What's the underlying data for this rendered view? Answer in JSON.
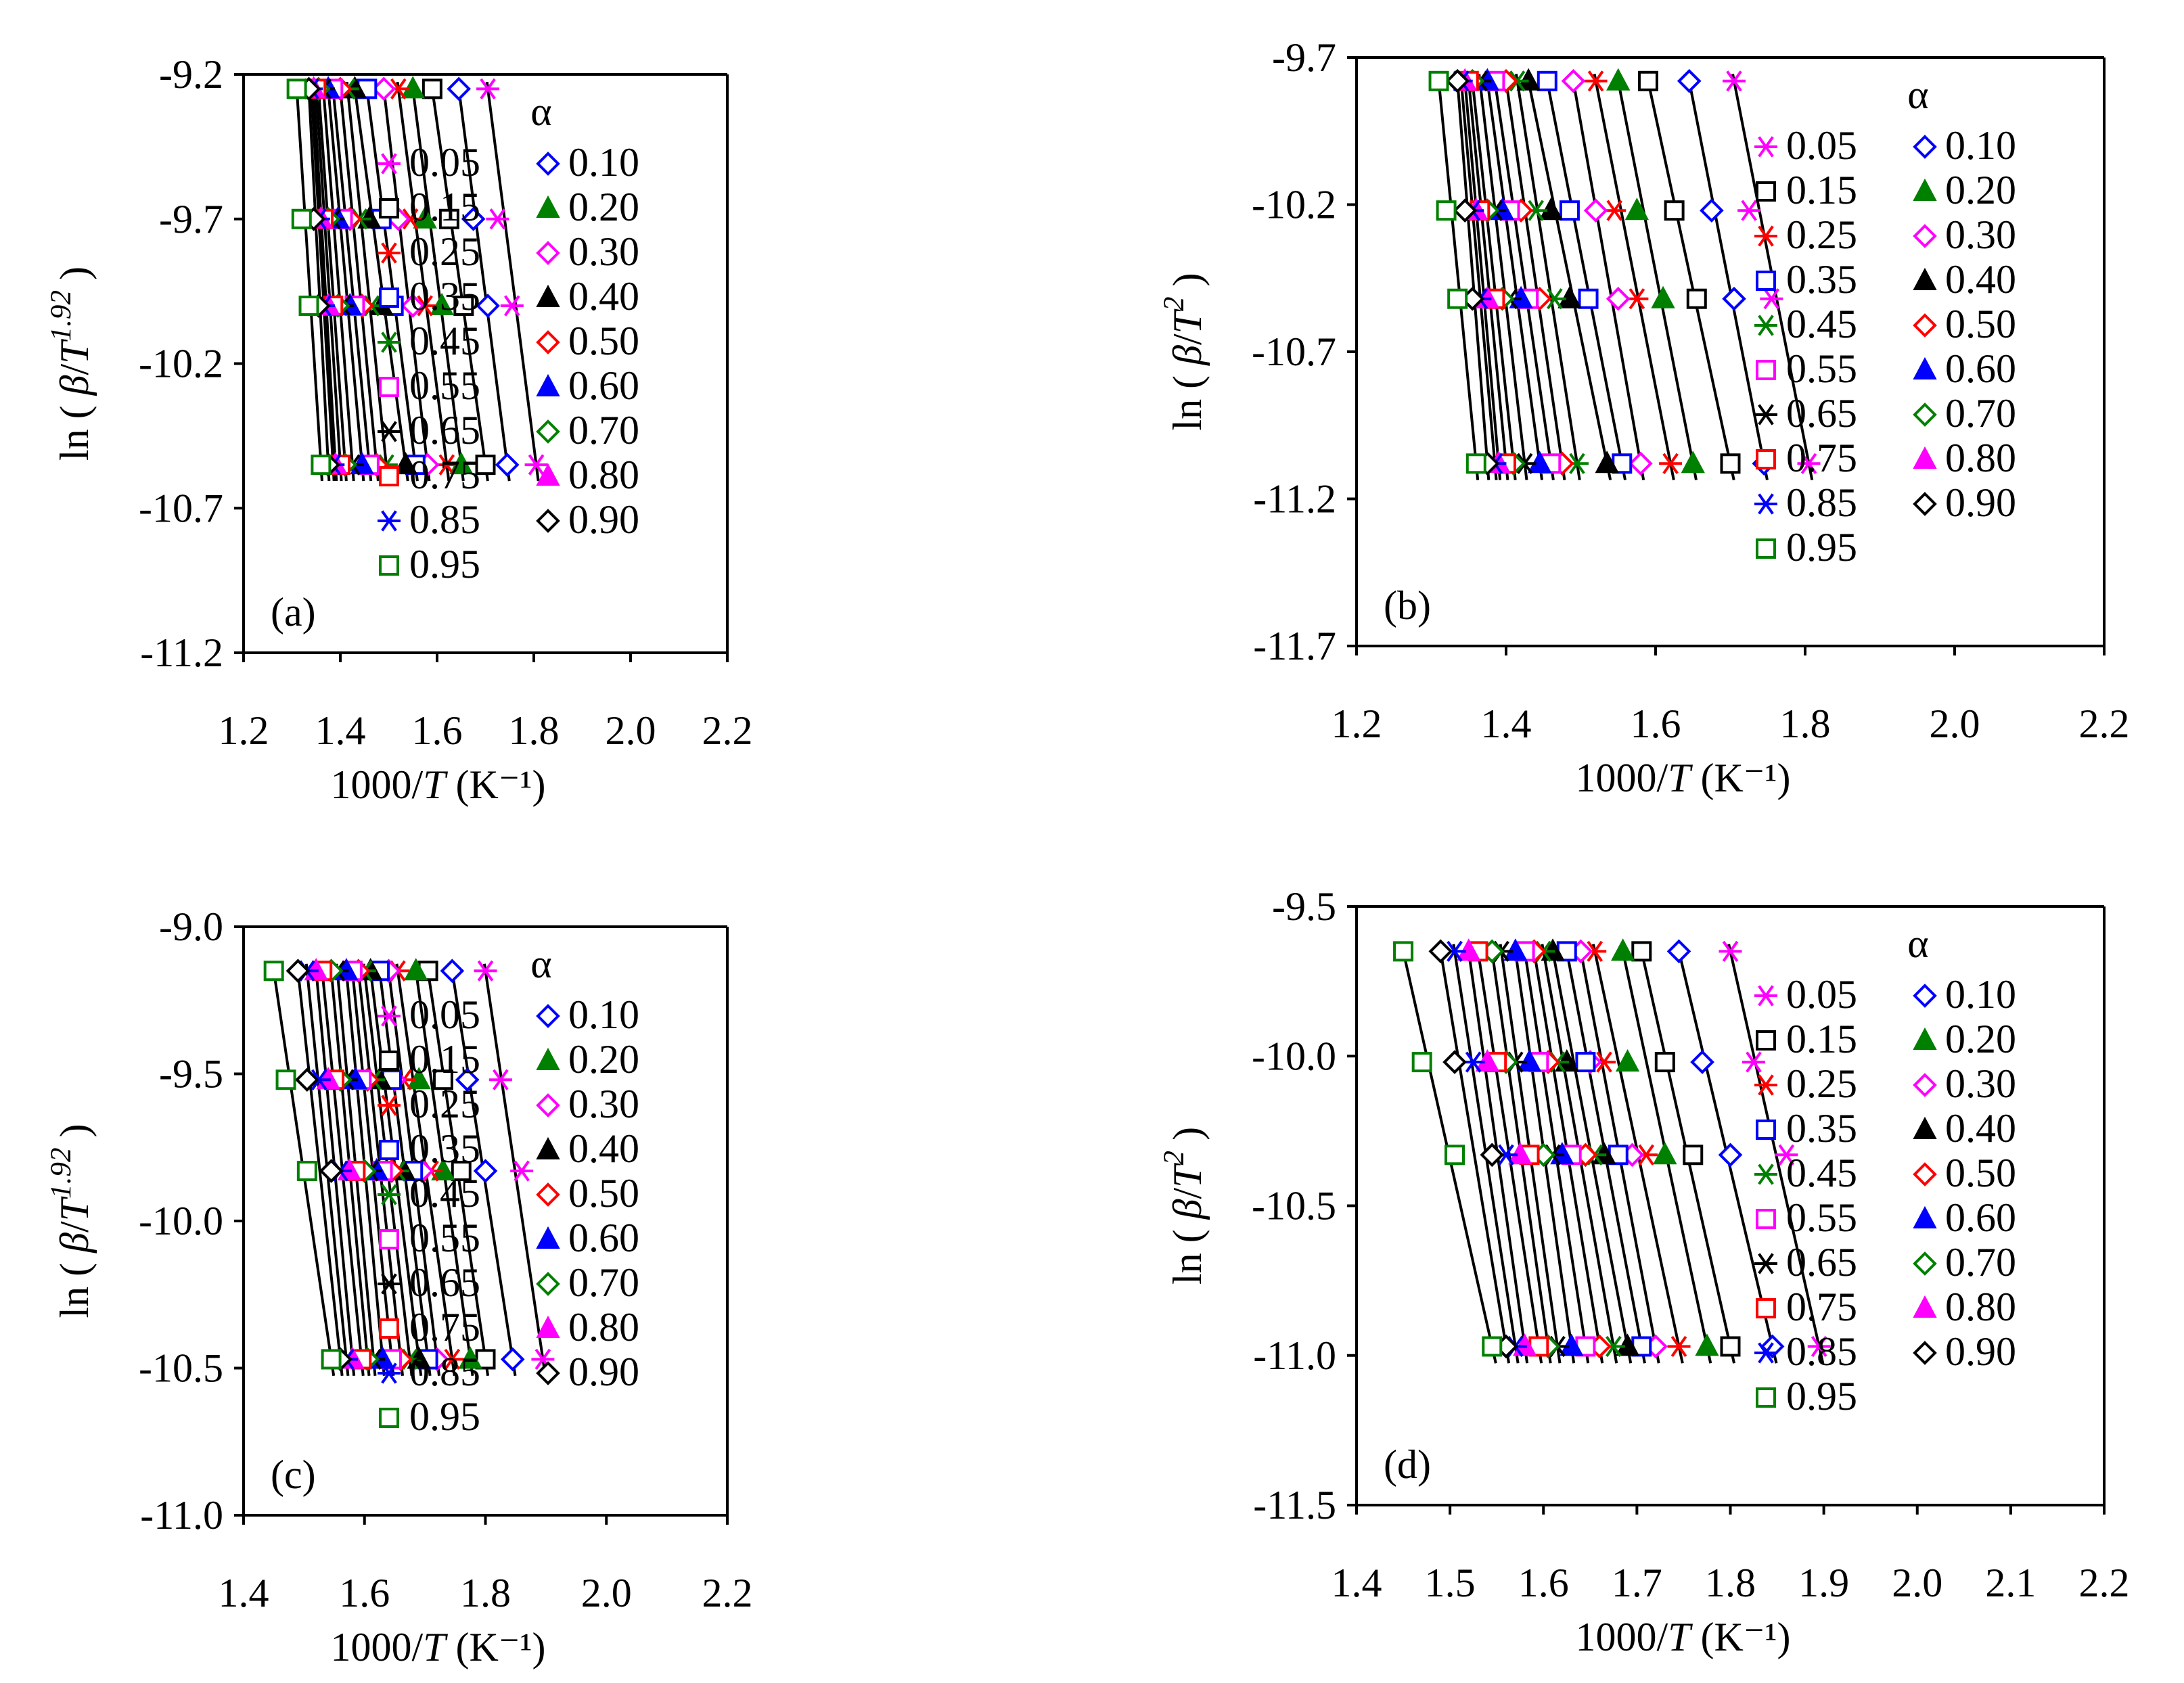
{
  "figure": {
    "background": "#ffffff"
  },
  "series_styles": [
    {
      "alpha": "0.05",
      "marker": "asterisk",
      "color": "#ff00ff"
    },
    {
      "alpha": "0.10",
      "marker": "diamond-open",
      "color": "#0000ff"
    },
    {
      "alpha": "0.15",
      "marker": "square-open",
      "color": "#000000"
    },
    {
      "alpha": "0.20",
      "marker": "triangle-filled",
      "color": "#008000"
    },
    {
      "alpha": "0.25",
      "marker": "asterisk",
      "color": "#ff0000"
    },
    {
      "alpha": "0.30",
      "marker": "diamond-open",
      "color": "#ff00ff"
    },
    {
      "alpha": "0.35",
      "marker": "square-open",
      "color": "#0000ff"
    },
    {
      "alpha": "0.40",
      "marker": "triangle-filled",
      "color": "#000000"
    },
    {
      "alpha": "0.45",
      "marker": "asterisk",
      "color": "#008000"
    },
    {
      "alpha": "0.50",
      "marker": "diamond-open",
      "color": "#ff0000"
    },
    {
      "alpha": "0.55",
      "marker": "square-open",
      "color": "#ff00ff"
    },
    {
      "alpha": "0.60",
      "marker": "triangle-filled",
      "color": "#0000ff"
    },
    {
      "alpha": "0.65",
      "marker": "asterisk",
      "color": "#000000"
    },
    {
      "alpha": "0.70",
      "marker": "diamond-open",
      "color": "#008000"
    },
    {
      "alpha": "0.75",
      "marker": "square-open",
      "color": "#ff0000"
    },
    {
      "alpha": "0.80",
      "marker": "triangle-filled",
      "color": "#ff00ff"
    },
    {
      "alpha": "0.85",
      "marker": "asterisk",
      "color": "#0000ff"
    },
    {
      "alpha": "0.90",
      "marker": "diamond-open",
      "color": "#000000"
    },
    {
      "alpha": "0.95",
      "marker": "square-open",
      "color": "#008000"
    }
  ],
  "fit_line_color": "#000000",
  "chart_data": [
    {
      "type": "scatter",
      "panel_label": "(a)",
      "xlabel": "1000/T (K⁻¹)",
      "ylabel": "ln ( β/T^1.92 )",
      "xlim": [
        1.2,
        2.2
      ],
      "ylim": [
        -11.2,
        -9.2
      ],
      "xticks": [
        "1.2",
        "1.4",
        "1.6",
        "1.8",
        "2.0",
        "2.2"
      ],
      "yticks": [
        "-9.2",
        "-9.7",
        "-10.2",
        "-10.7",
        "-11.2"
      ],
      "legend_title": "α",
      "legend_labels": [
        "0.05",
        "0.10",
        "0.15",
        "0.20",
        "0.25",
        "0.30",
        "0.35",
        "0.40",
        "0.45",
        "0.50",
        "0.55",
        "0.60",
        "0.65",
        "0.70",
        "0.75",
        "0.80",
        "0.85",
        "0.90",
        "0.95"
      ],
      "y_levels": [
        -9.25,
        -9.7,
        -10.0,
        -10.55
      ],
      "points": [
        [
          1.705,
          1.725,
          1.755,
          1.805
        ],
        [
          1.645,
          1.675,
          1.705,
          1.745
        ],
        [
          1.59,
          1.625,
          1.655,
          1.7
        ],
        [
          1.55,
          1.575,
          1.61,
          1.65
        ],
        [
          1.52,
          1.545,
          1.575,
          1.62
        ],
        [
          1.49,
          1.52,
          1.55,
          1.58
        ],
        [
          1.455,
          1.485,
          1.51,
          1.555
        ],
        [
          1.43,
          1.46,
          1.485,
          1.535
        ],
        [
          1.415,
          1.44,
          1.465,
          1.495
        ],
        [
          1.4,
          1.42,
          1.445,
          1.475
        ],
        [
          1.385,
          1.405,
          1.43,
          1.46
        ],
        [
          1.375,
          1.395,
          1.42,
          1.445
        ],
        [
          1.365,
          1.385,
          1.405,
          1.425
        ],
        [
          1.355,
          1.375,
          1.395,
          1.41
        ],
        [
          1.35,
          1.365,
          1.385,
          1.4
        ],
        [
          1.345,
          1.36,
          1.375,
          1.39
        ],
        [
          1.34,
          1.355,
          1.365,
          1.385
        ],
        [
          1.335,
          1.345,
          1.355,
          1.375
        ],
        [
          1.31,
          1.32,
          1.335,
          1.36
        ]
      ]
    },
    {
      "type": "scatter",
      "panel_label": "(b)",
      "xlabel": "1000/T (K⁻¹)",
      "ylabel": "ln ( β/T^2 )",
      "xlim": [
        1.2,
        2.2
      ],
      "ylim": [
        -11.7,
        -9.7
      ],
      "xticks": [
        "1.2",
        "1.4",
        "1.6",
        "1.8",
        "2.0",
        "2.2"
      ],
      "yticks": [
        "-9.7",
        "-10.2",
        "-10.7",
        "-11.2",
        "-11.7"
      ],
      "legend_title": "α",
      "legend_labels": [
        "0.05",
        "0.10",
        "0.15",
        "0.20",
        "0.25",
        "0.30",
        "0.35",
        "0.40",
        "0.45",
        "0.50",
        "0.55",
        "0.60",
        "0.65",
        "0.70",
        "0.75",
        "0.80",
        "0.85",
        "0.90",
        "0.95"
      ],
      "y_levels": [
        -9.78,
        -10.22,
        -10.52,
        -11.08
      ],
      "points": [
        [
          1.705,
          1.725,
          1.755,
          1.805
        ],
        [
          1.645,
          1.675,
          1.705,
          1.745
        ],
        [
          1.59,
          1.625,
          1.655,
          1.7
        ],
        [
          1.55,
          1.575,
          1.61,
          1.65
        ],
        [
          1.52,
          1.545,
          1.575,
          1.62
        ],
        [
          1.49,
          1.52,
          1.55,
          1.58
        ],
        [
          1.455,
          1.485,
          1.51,
          1.555
        ],
        [
          1.43,
          1.46,
          1.485,
          1.535
        ],
        [
          1.415,
          1.44,
          1.465,
          1.495
        ],
        [
          1.4,
          1.42,
          1.445,
          1.475
        ],
        [
          1.385,
          1.405,
          1.43,
          1.46
        ],
        [
          1.375,
          1.395,
          1.42,
          1.445
        ],
        [
          1.365,
          1.385,
          1.405,
          1.425
        ],
        [
          1.355,
          1.375,
          1.395,
          1.41
        ],
        [
          1.35,
          1.365,
          1.385,
          1.4
        ],
        [
          1.345,
          1.36,
          1.375,
          1.39
        ],
        [
          1.34,
          1.355,
          1.365,
          1.385
        ],
        [
          1.335,
          1.345,
          1.355,
          1.375
        ],
        [
          1.31,
          1.32,
          1.335,
          1.36
        ]
      ]
    },
    {
      "type": "scatter",
      "panel_label": "(c)",
      "xlabel": "1000/T (K⁻¹)",
      "ylabel": "ln ( β/T^1.92 )",
      "xlim": [
        1.4,
        2.2
      ],
      "ylim": [
        -11.0,
        -9.0
      ],
      "xticks": [
        "1.4",
        "1.6",
        "1.8",
        "2.0",
        "2.2"
      ],
      "yticks": [
        "-9.0",
        "-9.5",
        "-10.0",
        "-10.5",
        "-11.0"
      ],
      "legend_title": "α",
      "legend_labels": [
        "0.05",
        "0.10",
        "0.15",
        "0.20",
        "0.25",
        "0.30",
        "0.35",
        "0.40",
        "0.45",
        "0.50",
        "0.55",
        "0.60",
        "0.65",
        "0.70",
        "0.75",
        "0.80",
        "0.85",
        "0.90",
        "0.95"
      ],
      "y_levels": [
        -9.15,
        -9.52,
        -9.83,
        -10.47
      ],
      "points": [
        [
          1.8,
          1.825,
          1.86,
          1.895
        ],
        [
          1.745,
          1.77,
          1.8,
          1.845
        ],
        [
          1.705,
          1.73,
          1.76,
          1.8
        ],
        [
          1.685,
          1.69,
          1.73,
          1.775
        ],
        [
          1.655,
          1.665,
          1.71,
          1.745
        ],
        [
          1.64,
          1.65,
          1.695,
          1.72
        ],
        [
          1.625,
          1.645,
          1.68,
          1.705
        ],
        [
          1.61,
          1.625,
          1.665,
          1.69
        ],
        [
          1.6,
          1.615,
          1.655,
          1.675
        ],
        [
          1.59,
          1.605,
          1.645,
          1.66
        ],
        [
          1.58,
          1.595,
          1.63,
          1.645
        ],
        [
          1.57,
          1.585,
          1.62,
          1.63
        ],
        [
          1.555,
          1.57,
          1.61,
          1.615
        ],
        [
          1.545,
          1.56,
          1.6,
          1.605
        ],
        [
          1.53,
          1.55,
          1.585,
          1.595
        ],
        [
          1.52,
          1.54,
          1.575,
          1.58
        ],
        [
          1.505,
          1.525,
          1.56,
          1.57
        ],
        [
          1.49,
          1.505,
          1.545,
          1.56
        ],
        [
          1.45,
          1.47,
          1.505,
          1.545
        ]
      ]
    },
    {
      "type": "scatter",
      "panel_label": "(d)",
      "xlabel": "1000/T (K⁻¹)",
      "ylabel": "ln ( β/T^2 )",
      "xlim": [
        1.4,
        2.2
      ],
      "ylim": [
        -11.5,
        -9.5
      ],
      "xticks": [
        "1.4",
        "1.5",
        "1.6",
        "1.7",
        "1.8",
        "1.9",
        "2.0",
        "2.1",
        "2.2"
      ],
      "yticks": [
        "-9.5",
        "-10.0",
        "-10.5",
        "-11.0",
        "-11.5"
      ],
      "legend_title": "α",
      "legend_labels": [
        "0.05",
        "0.10",
        "0.15",
        "0.20",
        "0.25",
        "0.30",
        "0.35",
        "0.40",
        "0.45",
        "0.50",
        "0.55",
        "0.60",
        "0.65",
        "0.70",
        "0.75",
        "0.80",
        "0.85",
        "0.90",
        "0.95"
      ],
      "y_levels": [
        -9.65,
        -10.02,
        -10.33,
        -10.97
      ],
      "points": [
        [
          1.8,
          1.825,
          1.86,
          1.895
        ],
        [
          1.745,
          1.77,
          1.8,
          1.845
        ],
        [
          1.705,
          1.73,
          1.76,
          1.8
        ],
        [
          1.685,
          1.69,
          1.73,
          1.775
        ],
        [
          1.655,
          1.665,
          1.71,
          1.745
        ],
        [
          1.64,
          1.65,
          1.695,
          1.72
        ],
        [
          1.625,
          1.645,
          1.68,
          1.705
        ],
        [
          1.61,
          1.625,
          1.665,
          1.69
        ],
        [
          1.6,
          1.615,
          1.655,
          1.675
        ],
        [
          1.59,
          1.605,
          1.645,
          1.66
        ],
        [
          1.58,
          1.595,
          1.63,
          1.645
        ],
        [
          1.57,
          1.585,
          1.62,
          1.63
        ],
        [
          1.555,
          1.57,
          1.61,
          1.615
        ],
        [
          1.545,
          1.56,
          1.6,
          1.605
        ],
        [
          1.53,
          1.55,
          1.585,
          1.595
        ],
        [
          1.52,
          1.54,
          1.575,
          1.58
        ],
        [
          1.505,
          1.525,
          1.56,
          1.57
        ],
        [
          1.49,
          1.505,
          1.545,
          1.56
        ],
        [
          1.45,
          1.47,
          1.505,
          1.545
        ]
      ]
    }
  ]
}
